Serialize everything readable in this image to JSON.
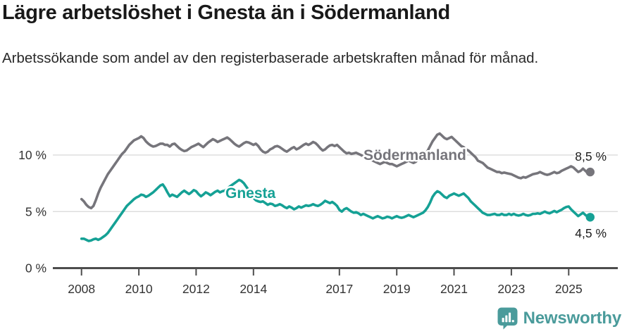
{
  "header": {
    "title": "Lägre arbetslöshet i Gnesta än i Södermanland",
    "subtitle": "Arbetssökande som andel av den registerbaserade arbetskraften månad för månad."
  },
  "footer": {
    "brand": "Newsworthy"
  },
  "colors": {
    "sodermanland": "#76757b",
    "gnesta": "#15a195",
    "grid": "#dedede",
    "axis": "#4d4d4d",
    "tick_text": "#333333",
    "value_text": "#1c1c1c",
    "logo": "#4a9b9b"
  },
  "chart_data": {
    "type": "line",
    "title": "Lägre arbetslöshet i Gnesta än i Södermanland",
    "subtitle": "Arbetssökande som andel av den registerbaserade arbetskraften månad för månad.",
    "x_unit": "month",
    "x_start": "2008-01",
    "x_end": "2025-10",
    "ylim": [
      0,
      12.5
    ],
    "grid": "horizontal",
    "legend_position": "inline-labels",
    "y_axis": {
      "values": [
        0,
        5,
        10
      ],
      "labels": [
        "0 %",
        "5 %",
        "10 %"
      ],
      "gridline_values": [
        5,
        10
      ]
    },
    "x_axis": {
      "values": [
        2008,
        2010,
        2012,
        2014,
        2017,
        2019,
        2021,
        2023,
        2025
      ],
      "labels": [
        "2008",
        "2010",
        "2012",
        "2014",
        "2017",
        "2019",
        "2021",
        "2023",
        "2025"
      ]
    },
    "series": [
      {
        "name": "Södermanland",
        "color": "#76757b",
        "end_label": "8,5 %",
        "end_value": 8.5,
        "values": [
          6.1,
          5.9,
          5.6,
          5.4,
          5.3,
          5.5,
          6.0,
          6.6,
          7.1,
          7.5,
          7.9,
          8.3,
          8.6,
          8.9,
          9.2,
          9.5,
          9.8,
          10.1,
          10.3,
          10.6,
          10.9,
          11.1,
          11.3,
          11.4,
          11.5,
          11.65,
          11.5,
          11.2,
          11.0,
          10.85,
          10.75,
          10.8,
          10.9,
          11.0,
          11.0,
          10.9,
          10.9,
          10.75,
          10.95,
          11.0,
          10.8,
          10.6,
          10.45,
          10.35,
          10.4,
          10.55,
          10.7,
          10.8,
          10.9,
          11.0,
          10.85,
          10.7,
          10.9,
          11.1,
          11.25,
          11.4,
          11.3,
          11.15,
          11.25,
          11.35,
          11.45,
          11.55,
          11.4,
          11.2,
          11.0,
          10.85,
          10.75,
          10.9,
          11.05,
          11.15,
          11.1,
          11.0,
          10.9,
          11.0,
          10.8,
          10.5,
          10.3,
          10.2,
          10.3,
          10.5,
          10.6,
          10.75,
          10.8,
          10.7,
          10.55,
          10.4,
          10.3,
          10.45,
          10.6,
          10.7,
          10.5,
          10.6,
          10.75,
          10.9,
          11.0,
          10.9,
          11.0,
          11.15,
          11.05,
          10.85,
          10.6,
          10.4,
          10.5,
          10.7,
          10.85,
          10.9,
          10.8,
          10.9,
          10.7,
          10.5,
          10.3,
          10.15,
          10.2,
          10.1,
          10.15,
          10.2,
          10.1,
          10.0,
          9.9,
          9.8,
          9.7,
          9.6,
          9.5,
          9.4,
          9.3,
          9.2,
          9.3,
          9.4,
          9.3,
          9.2,
          9.2,
          9.1,
          9.0,
          9.1,
          9.2,
          9.3,
          9.4,
          9.5,
          9.4,
          9.3,
          9.4,
          9.6,
          9.7,
          9.9,
          10.1,
          10.4,
          10.8,
          11.2,
          11.5,
          11.8,
          11.9,
          11.7,
          11.5,
          11.4,
          11.5,
          11.6,
          11.4,
          11.2,
          11.0,
          10.8,
          10.7,
          10.5,
          10.4,
          10.2,
          10.0,
          9.8,
          9.5,
          9.4,
          9.3,
          9.1,
          8.9,
          8.8,
          8.7,
          8.6,
          8.5,
          8.5,
          8.4,
          8.45,
          8.4,
          8.35,
          8.3,
          8.2,
          8.1,
          8.0,
          7.95,
          8.05,
          8.0,
          8.1,
          8.2,
          8.3,
          8.35,
          8.4,
          8.5,
          8.4,
          8.3,
          8.25,
          8.3,
          8.4,
          8.5,
          8.4,
          8.45,
          8.6,
          8.7,
          8.8,
          8.9,
          9.0,
          8.9,
          8.7,
          8.5,
          8.6,
          8.8,
          8.6,
          8.4,
          8.5
        ]
      },
      {
        "name": "Gnesta",
        "color": "#15a195",
        "end_label": "4,5 %",
        "end_value": 4.5,
        "values": [
          2.6,
          2.6,
          2.5,
          2.4,
          2.45,
          2.55,
          2.6,
          2.5,
          2.6,
          2.75,
          2.9,
          3.1,
          3.4,
          3.7,
          4.0,
          4.3,
          4.6,
          4.9,
          5.2,
          5.5,
          5.7,
          5.9,
          6.1,
          6.25,
          6.35,
          6.5,
          6.45,
          6.3,
          6.4,
          6.55,
          6.7,
          6.9,
          7.1,
          7.3,
          7.4,
          7.1,
          6.7,
          6.35,
          6.5,
          6.4,
          6.3,
          6.5,
          6.7,
          6.85,
          6.7,
          6.55,
          6.7,
          6.9,
          6.8,
          6.55,
          6.35,
          6.5,
          6.7,
          6.6,
          6.45,
          6.6,
          6.75,
          6.85,
          6.7,
          6.8,
          6.85,
          7.0,
          7.2,
          7.35,
          7.5,
          7.65,
          7.8,
          7.7,
          7.5,
          7.2,
          6.9,
          6.5,
          6.2,
          6.0,
          5.9,
          5.85,
          5.9,
          5.75,
          5.6,
          5.7,
          5.65,
          5.5,
          5.55,
          5.65,
          5.55,
          5.4,
          5.3,
          5.45,
          5.35,
          5.2,
          5.3,
          5.45,
          5.35,
          5.45,
          5.55,
          5.5,
          5.55,
          5.65,
          5.55,
          5.5,
          5.6,
          5.75,
          5.95,
          5.85,
          5.75,
          5.85,
          5.7,
          5.5,
          5.15,
          5.0,
          5.2,
          5.3,
          5.15,
          5.0,
          4.9,
          4.95,
          4.85,
          4.7,
          4.8,
          4.7,
          4.6,
          4.5,
          4.4,
          4.5,
          4.6,
          4.5,
          4.4,
          4.45,
          4.55,
          4.5,
          4.4,
          4.5,
          4.6,
          4.5,
          4.45,
          4.5,
          4.6,
          4.7,
          4.6,
          4.5,
          4.6,
          4.7,
          4.8,
          4.9,
          5.1,
          5.4,
          5.8,
          6.3,
          6.6,
          6.8,
          6.7,
          6.5,
          6.3,
          6.2,
          6.4,
          6.5,
          6.6,
          6.5,
          6.4,
          6.5,
          6.6,
          6.4,
          6.2,
          5.9,
          5.7,
          5.5,
          5.3,
          5.1,
          4.9,
          4.8,
          4.7,
          4.7,
          4.75,
          4.8,
          4.7,
          4.7,
          4.8,
          4.7,
          4.7,
          4.8,
          4.7,
          4.8,
          4.7,
          4.65,
          4.7,
          4.8,
          4.7,
          4.65,
          4.7,
          4.8,
          4.8,
          4.85,
          4.8,
          4.9,
          5.0,
          4.9,
          4.85,
          4.95,
          5.05,
          4.95,
          5.05,
          5.15,
          5.3,
          5.4,
          5.45,
          5.2,
          5.0,
          4.8,
          4.6,
          4.75,
          4.9,
          4.7,
          4.55,
          4.5
        ]
      }
    ]
  }
}
